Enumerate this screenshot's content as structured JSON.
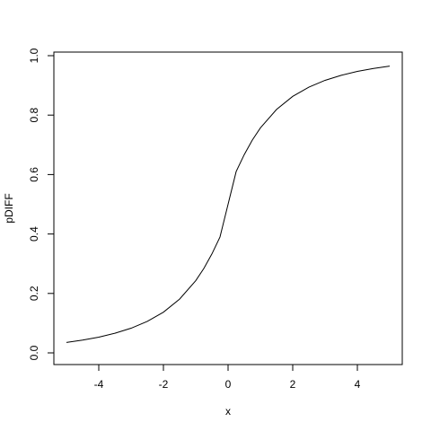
{
  "chart_data": {
    "type": "line",
    "xlabel": "x",
    "ylabel": "pDIFF",
    "xlim": [
      -5,
      5
    ],
    "ylim": [
      0,
      1
    ],
    "x_ticks": [
      -4,
      -2,
      0,
      2,
      4
    ],
    "y_ticks": [
      0.0,
      0.2,
      0.4,
      0.6,
      0.8,
      1.0
    ],
    "x_tick_labels": [
      "-4",
      "-2",
      "0",
      "2",
      "4"
    ],
    "y_tick_labels": [
      "0.0",
      "0.2",
      "0.4",
      "0.6",
      "0.8",
      "1.0"
    ],
    "grid": false,
    "series": [
      {
        "x": [
          -5,
          -4.5,
          -4,
          -3.5,
          -3,
          -2.5,
          -2,
          -1.5,
          -1,
          -0.75,
          -0.5,
          -0.25,
          0,
          0.25,
          0.5,
          0.75,
          1,
          1.5,
          2,
          2.5,
          3,
          3.5,
          4,
          4.5,
          5
        ],
        "y": [
          0.035,
          0.043,
          0.053,
          0.066,
          0.083,
          0.106,
          0.137,
          0.181,
          0.243,
          0.284,
          0.333,
          0.39,
          0.5,
          0.61,
          0.667,
          0.716,
          0.757,
          0.819,
          0.863,
          0.894,
          0.917,
          0.934,
          0.947,
          0.957,
          0.965
        ]
      }
    ]
  }
}
